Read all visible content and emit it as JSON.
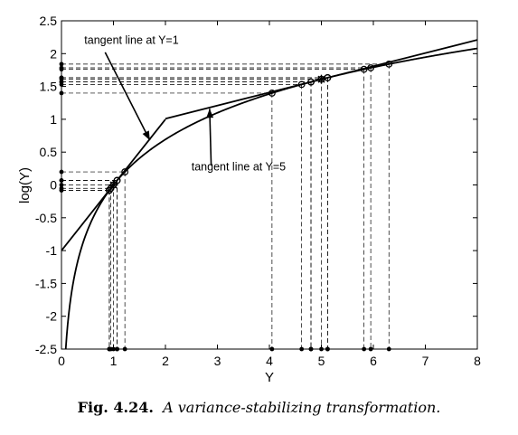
{
  "chart_data": {
    "type": "line",
    "title": "",
    "xlabel": "Y",
    "ylabel": "log(Y)",
    "xlim": [
      0,
      8
    ],
    "ylim": [
      -2.5,
      2.5
    ],
    "xticks": [
      0,
      1,
      2,
      3,
      4,
      5,
      6,
      7,
      8
    ],
    "yticks": [
      -2.5,
      -2,
      -1.5,
      -1,
      -0.5,
      0,
      0.5,
      1,
      1.5,
      2,
      2.5
    ],
    "xtick_labels": [
      "0",
      "1",
      "2",
      "3",
      "4",
      "5",
      "6",
      "7",
      "8"
    ],
    "ytick_labels": [
      "-2.5",
      "-2",
      "-1.5",
      "-1",
      "-0.5",
      "0",
      "0.5",
      "1",
      "1.5",
      "2",
      "2.5"
    ],
    "grid": false,
    "curve": {
      "x_start": 0.08,
      "x_end": 8
    },
    "tangent_lines": [
      {
        "at_y": 1,
        "x_range": [
          0,
          2
        ],
        "slope": 1,
        "intercept": -1
      },
      {
        "at_y": 5,
        "x_range": [
          2,
          8
        ],
        "slope": 0.2,
        "intercept": 0.609
      }
    ],
    "sample_points_near_1": [
      0.92,
      0.95,
      1.0,
      1.07,
      1.22
    ],
    "sample_points_near_5": [
      4.05,
      4.62,
      4.8,
      5.0,
      5.12,
      5.82,
      5.95,
      6.3
    ],
    "tangent_points_near_1": [
      0.92,
      1.07
    ],
    "tangent_points_near_5": [
      4.8,
      5.12
    ],
    "centers": [
      1,
      5
    ],
    "annotations": [
      {
        "label": "tangent line at Y=1",
        "text_pos": [
          0.44,
          2.15
        ],
        "arrow_from": [
          0.84,
          2.02
        ],
        "arrow_to": [
          1.7,
          0.68
        ]
      },
      {
        "label": "tangent line at Y=5",
        "text_pos": [
          2.5,
          0.22
        ],
        "arrow_from": [
          2.88,
          0.3
        ],
        "arrow_to": [
          2.85,
          1.16
        ]
      }
    ]
  },
  "caption": {
    "fig_num": "Fig. 4.24.",
    "text": "A variance-stabilizing transformation."
  }
}
